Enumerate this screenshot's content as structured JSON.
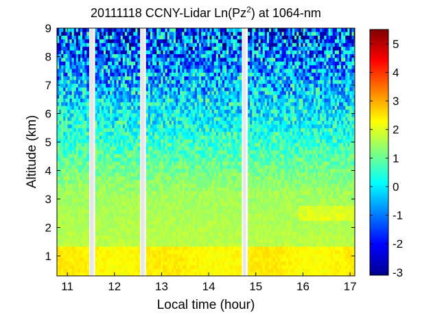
{
  "chart_data": {
    "type": "heatmap",
    "title": {
      "main": "20111118 CCNY-Lidar Ln(Pz",
      "superscript": "2",
      "suffix": ") at 1064-nm"
    },
    "xlabel": "Local time (hour)",
    "ylabel": "Altitude (km)",
    "xlim": [
      10.78,
      17.1
    ],
    "ylim": [
      0.3,
      9.0
    ],
    "x_ticks": [
      "11",
      "12",
      "13",
      "14",
      "15",
      "16",
      "17"
    ],
    "y_ticks": [
      "1",
      "2",
      "3",
      "4",
      "5",
      "6",
      "7",
      "8",
      "9"
    ],
    "colorbar": {
      "range": [
        -3.1,
        5.5
      ],
      "ticks": [
        "-3",
        "-2",
        "-1",
        "0",
        "1",
        "2",
        "3",
        "4",
        "5"
      ],
      "colormap": "jet"
    },
    "data_gaps_hours": [
      [
        11.48,
        11.56
      ],
      [
        12.56,
        12.64
      ],
      [
        14.73,
        14.79
      ]
    ],
    "grid": false
  }
}
